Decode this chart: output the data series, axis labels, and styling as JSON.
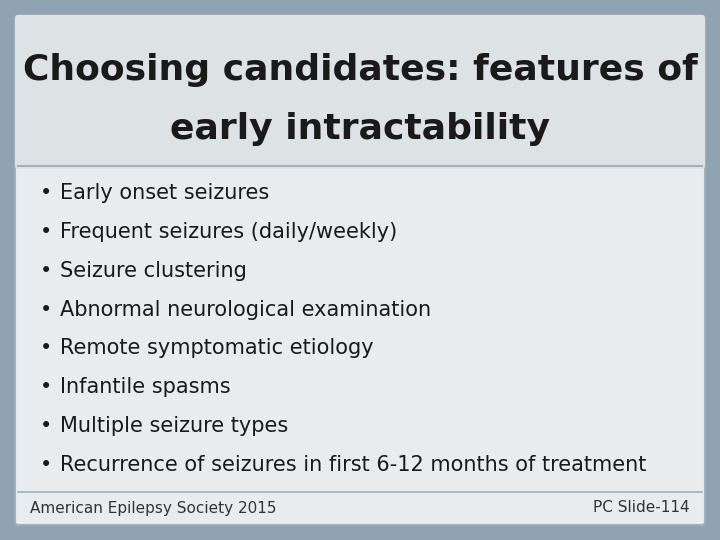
{
  "title_line1": "Choosing candidates: features of",
  "title_line2": "early intractability",
  "bullet_items": [
    "Early onset seizures",
    "Frequent seizures (daily/weekly)",
    "Seizure clustering",
    "Abnormal neurological examination",
    "Remote symptomatic etiology",
    "Infantile spasms",
    "Multiple seizure types",
    "Recurrence of seizures in first 6-12 months of treatment"
  ],
  "footer_left": "American Epilepsy Society 2015",
  "footer_right": "PC Slide-114",
  "bg_color": "#8fa3b1",
  "slide_bg": "#e8ecee",
  "title_bg": "#dde2e5",
  "border_color": "#a0b0ba",
  "title_font_size": 26,
  "bullet_font_size": 15,
  "footer_font_size": 11,
  "text_color": "#1a1a1a",
  "footer_text_color": "#333333"
}
